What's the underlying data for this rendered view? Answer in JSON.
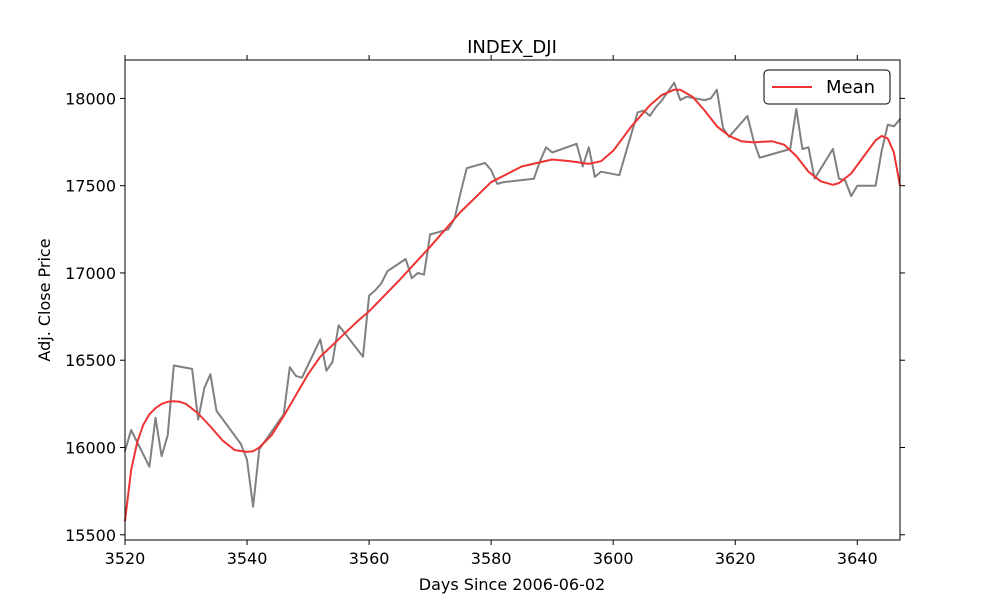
{
  "chart_data": {
    "type": "line",
    "title": "INDEX_DJI",
    "xlabel": "Days Since 2006-06-02",
    "ylabel": "Adj. Close Price",
    "xlim": [
      3520,
      3647
    ],
    "ylim": [
      15470,
      18220
    ],
    "x_ticks": [
      3520,
      3540,
      3560,
      3580,
      3600,
      3620,
      3640
    ],
    "y_ticks": [
      15500,
      16000,
      16500,
      17000,
      17500,
      18000
    ],
    "legend": {
      "position": "top-right",
      "entries": [
        "Mean"
      ]
    },
    "series": [
      {
        "name": "Price",
        "color": "#808080",
        "in_legend": false,
        "x": [
          3520,
          3521,
          3524,
          3525,
          3526,
          3527,
          3528,
          3531,
          3532,
          3533,
          3534,
          3535,
          3539,
          3540,
          3541,
          3542,
          3546,
          3547,
          3548,
          3549,
          3552,
          3553,
          3554,
          3555,
          3559,
          3560,
          3561,
          3562,
          3563,
          3566,
          3567,
          3568,
          3569,
          3570,
          3573,
          3574,
          3575,
          3576,
          3579,
          3580,
          3581,
          3582,
          3587,
          3588,
          3589,
          3590,
          3594,
          3595,
          3596,
          3597,
          3598,
          3601,
          3604,
          3605,
          3606,
          3607,
          3608,
          3609,
          3610,
          3611,
          3612,
          3615,
          3616,
          3617,
          3618,
          3619,
          3622,
          3623,
          3624,
          3625,
          3629,
          3630,
          3631,
          3632,
          3633,
          3636,
          3637,
          3638,
          3639,
          3640,
          3643,
          3644,
          3645,
          3646,
          3647
        ],
        "values": [
          15980,
          16100,
          15890,
          16170,
          15950,
          16070,
          16470,
          16450,
          16160,
          16340,
          16420,
          16210,
          16020,
          15930,
          15660,
          15990,
          16190,
          16460,
          16410,
          16400,
          16620,
          16440,
          16490,
          16700,
          16520,
          16870,
          16900,
          16940,
          17010,
          17080,
          16970,
          17000,
          16990,
          17220,
          17250,
          17310,
          17460,
          17600,
          17630,
          17590,
          17510,
          17520,
          17540,
          17640,
          17720,
          17690,
          17740,
          17610,
          17720,
          17550,
          17580,
          17560,
          17920,
          17930,
          17900,
          17950,
          17990,
          18040,
          18090,
          17990,
          18010,
          17990,
          18000,
          18050,
          17830,
          17780,
          17900,
          17760,
          17660,
          17670,
          17710,
          17940,
          17710,
          17720,
          17540,
          17710,
          17540,
          17530,
          17440,
          17500,
          17500,
          17700,
          17850,
          17840,
          17880
        ]
      },
      {
        "name": "Mean",
        "color": "#ee3333",
        "in_legend": true,
        "x": [
          3520,
          3521,
          3522,
          3523,
          3524,
          3525,
          3526,
          3527,
          3528,
          3529,
          3530,
          3532,
          3534,
          3536,
          3538,
          3540,
          3541,
          3542,
          3544,
          3546,
          3548,
          3550,
          3552,
          3555,
          3558,
          3560,
          3565,
          3570,
          3575,
          3580,
          3585,
          3590,
          3593,
          3596,
          3598,
          3600,
          3603,
          3606,
          3608,
          3610,
          3611,
          3613,
          3615,
          3617,
          3619,
          3621,
          3623,
          3626,
          3628,
          3630,
          3632,
          3634,
          3636,
          3637,
          3639,
          3641,
          3643,
          3644,
          3645,
          3646,
          3647
        ],
        "values": [
          15580,
          15870,
          16030,
          16130,
          16190,
          16225,
          16250,
          16262,
          16265,
          16262,
          16250,
          16195,
          16120,
          16040,
          15985,
          15975,
          15978,
          16000,
          16070,
          16180,
          16300,
          16420,
          16520,
          16620,
          16720,
          16780,
          16960,
          17150,
          17350,
          17520,
          17610,
          17650,
          17640,
          17625,
          17640,
          17700,
          17840,
          17960,
          18020,
          18050,
          18050,
          18010,
          17930,
          17840,
          17785,
          17755,
          17748,
          17755,
          17735,
          17670,
          17580,
          17525,
          17505,
          17515,
          17570,
          17665,
          17760,
          17785,
          17770,
          17690,
          17500
        ]
      }
    ]
  }
}
